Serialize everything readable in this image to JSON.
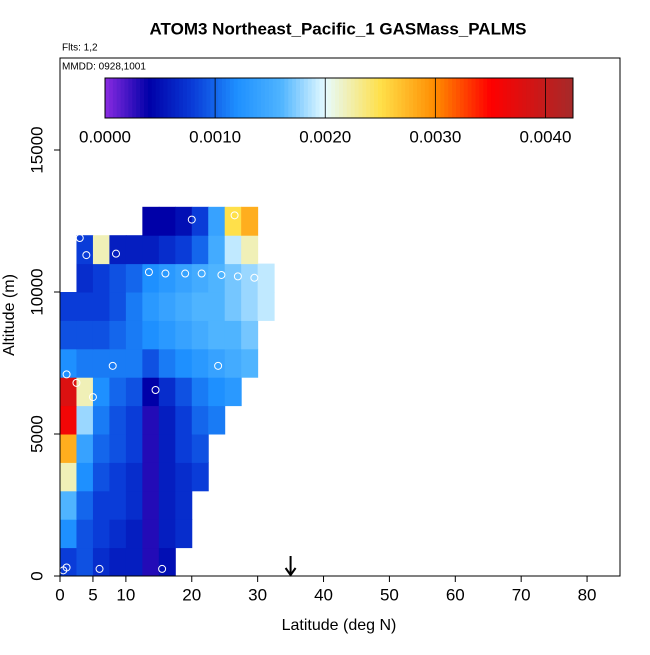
{
  "chart_data": {
    "type": "heatmap",
    "title": "ATOM3 Northeast_Pacific_1 GASMass_PALMS",
    "subtitle": "Flts: 1,2",
    "annotation": "MMDD: 0928,1001",
    "x_label": "Latitude (deg N)",
    "y_label": "Altitude (m)",
    "xlim": [
      0,
      85
    ],
    "ylim": [
      0,
      18240
    ],
    "xticks": [
      0,
      5,
      10,
      20,
      30,
      40,
      50,
      60,
      70,
      80
    ],
    "yticks": [
      0,
      5000,
      10000,
      15000
    ],
    "x_bins": [
      0,
      2.5,
      5,
      7.5,
      10,
      12.5,
      15,
      17.5,
      20,
      22.5,
      25,
      27.5,
      30,
      32.5
    ],
    "y_bins": [
      0,
      1000,
      2000,
      3000,
      4000,
      5000,
      6000,
      7000,
      8000,
      9000,
      10000,
      11000,
      12000,
      13000
    ],
    "values": [
      [
        0.0008,
        0.0009,
        0.0007,
        0.0006,
        0.0006,
        0.0003,
        0.0005,
        null,
        null,
        null,
        null,
        null,
        null
      ],
      [
        0.0012,
        0.0009,
        0.0008,
        0.0007,
        0.0006,
        0.0003,
        0.0006,
        0.0007,
        null,
        null,
        null,
        null,
        null
      ],
      [
        0.0016,
        0.001,
        0.0008,
        0.0008,
        0.0007,
        0.0003,
        0.0006,
        0.0007,
        null,
        null,
        null,
        null,
        null
      ],
      [
        0.0022,
        0.0012,
        0.0009,
        0.0008,
        0.0007,
        0.0003,
        0.0006,
        0.0007,
        0.0008,
        null,
        null,
        null,
        null
      ],
      [
        0.0028,
        0.0014,
        0.001,
        0.0009,
        0.0008,
        0.0003,
        0.0006,
        0.0008,
        0.0009,
        null,
        null,
        null,
        null
      ],
      [
        0.0036,
        0.0018,
        0.0011,
        0.0009,
        0.0008,
        0.0003,
        0.0006,
        0.0008,
        0.001,
        0.0011,
        null,
        null,
        null
      ],
      [
        0.0038,
        0.0022,
        0.0012,
        0.001,
        0.0009,
        0.0004,
        0.0007,
        0.0009,
        0.0011,
        0.0012,
        0.0013,
        null,
        null
      ],
      [
        0.0012,
        0.0011,
        0.0011,
        0.0011,
        0.0011,
        0.0009,
        0.0011,
        0.0012,
        0.0013,
        0.0014,
        0.0015,
        0.0016,
        null
      ],
      [
        0.0009,
        0.0009,
        0.0009,
        0.001,
        0.0011,
        0.0012,
        0.0013,
        0.0014,
        0.0015,
        0.0016,
        0.0016,
        0.0017,
        null
      ],
      [
        0.0008,
        0.0008,
        0.0008,
        0.0009,
        0.0011,
        0.0013,
        0.0014,
        0.0015,
        0.0016,
        0.0016,
        0.0017,
        0.0018,
        0.0019
      ],
      [
        null,
        0.0007,
        0.0008,
        0.0009,
        0.001,
        0.0012,
        0.0013,
        0.0014,
        0.0015,
        0.0016,
        0.0017,
        0.0018,
        0.0019
      ],
      [
        null,
        0.0008,
        0.0022,
        0.0006,
        0.0006,
        0.0006,
        0.0007,
        0.0008,
        0.001,
        0.0015,
        0.0019,
        0.0022,
        null
      ],
      [
        null,
        null,
        null,
        null,
        null,
        0.0004,
        0.0004,
        0.0005,
        0.0008,
        0.0014,
        0.0025,
        0.0028,
        null
      ]
    ],
    "points": {
      "x": [
        0.5,
        1,
        6,
        15.5,
        2.5,
        5,
        14.5,
        8,
        24,
        1,
        3,
        4,
        8.5,
        13.5,
        16,
        19,
        21.5,
        24.5,
        27,
        29.5,
        20,
        26.5
      ],
      "y": [
        200,
        300,
        250,
        250,
        6800,
        6300,
        6550,
        7400,
        7400,
        7100,
        11900,
        11300,
        11350,
        10700,
        10650,
        10650,
        10650,
        10600,
        10550,
        10500,
        12550,
        12700
      ]
    },
    "marker_x": 35,
    "colorbar": {
      "lim": [
        0,
        0.00425
      ],
      "ticks": [
        {
          "value": 0,
          "label": "0.0000"
        },
        {
          "value": 0.001,
          "label": "0.0010"
        },
        {
          "value": 0.002,
          "label": "0.0020"
        },
        {
          "value": 0.003,
          "label": "0.0030"
        },
        {
          "value": 0.004,
          "label": "0.0040"
        }
      ],
      "colorscale": [
        [
          0,
          "#8a2be2"
        ],
        [
          0.0004,
          "#0000a8"
        ],
        [
          0.0008,
          "#0a3cd8"
        ],
        [
          0.0012,
          "#1e90ff"
        ],
        [
          0.0016,
          "#4fb4ff"
        ],
        [
          0.002,
          "#e6fbff"
        ],
        [
          0.0025,
          "#ffe04a"
        ],
        [
          0.003,
          "#ff8c00"
        ],
        [
          0.0035,
          "#ff0000"
        ],
        [
          0.00425,
          "#a52a2a"
        ]
      ]
    }
  }
}
